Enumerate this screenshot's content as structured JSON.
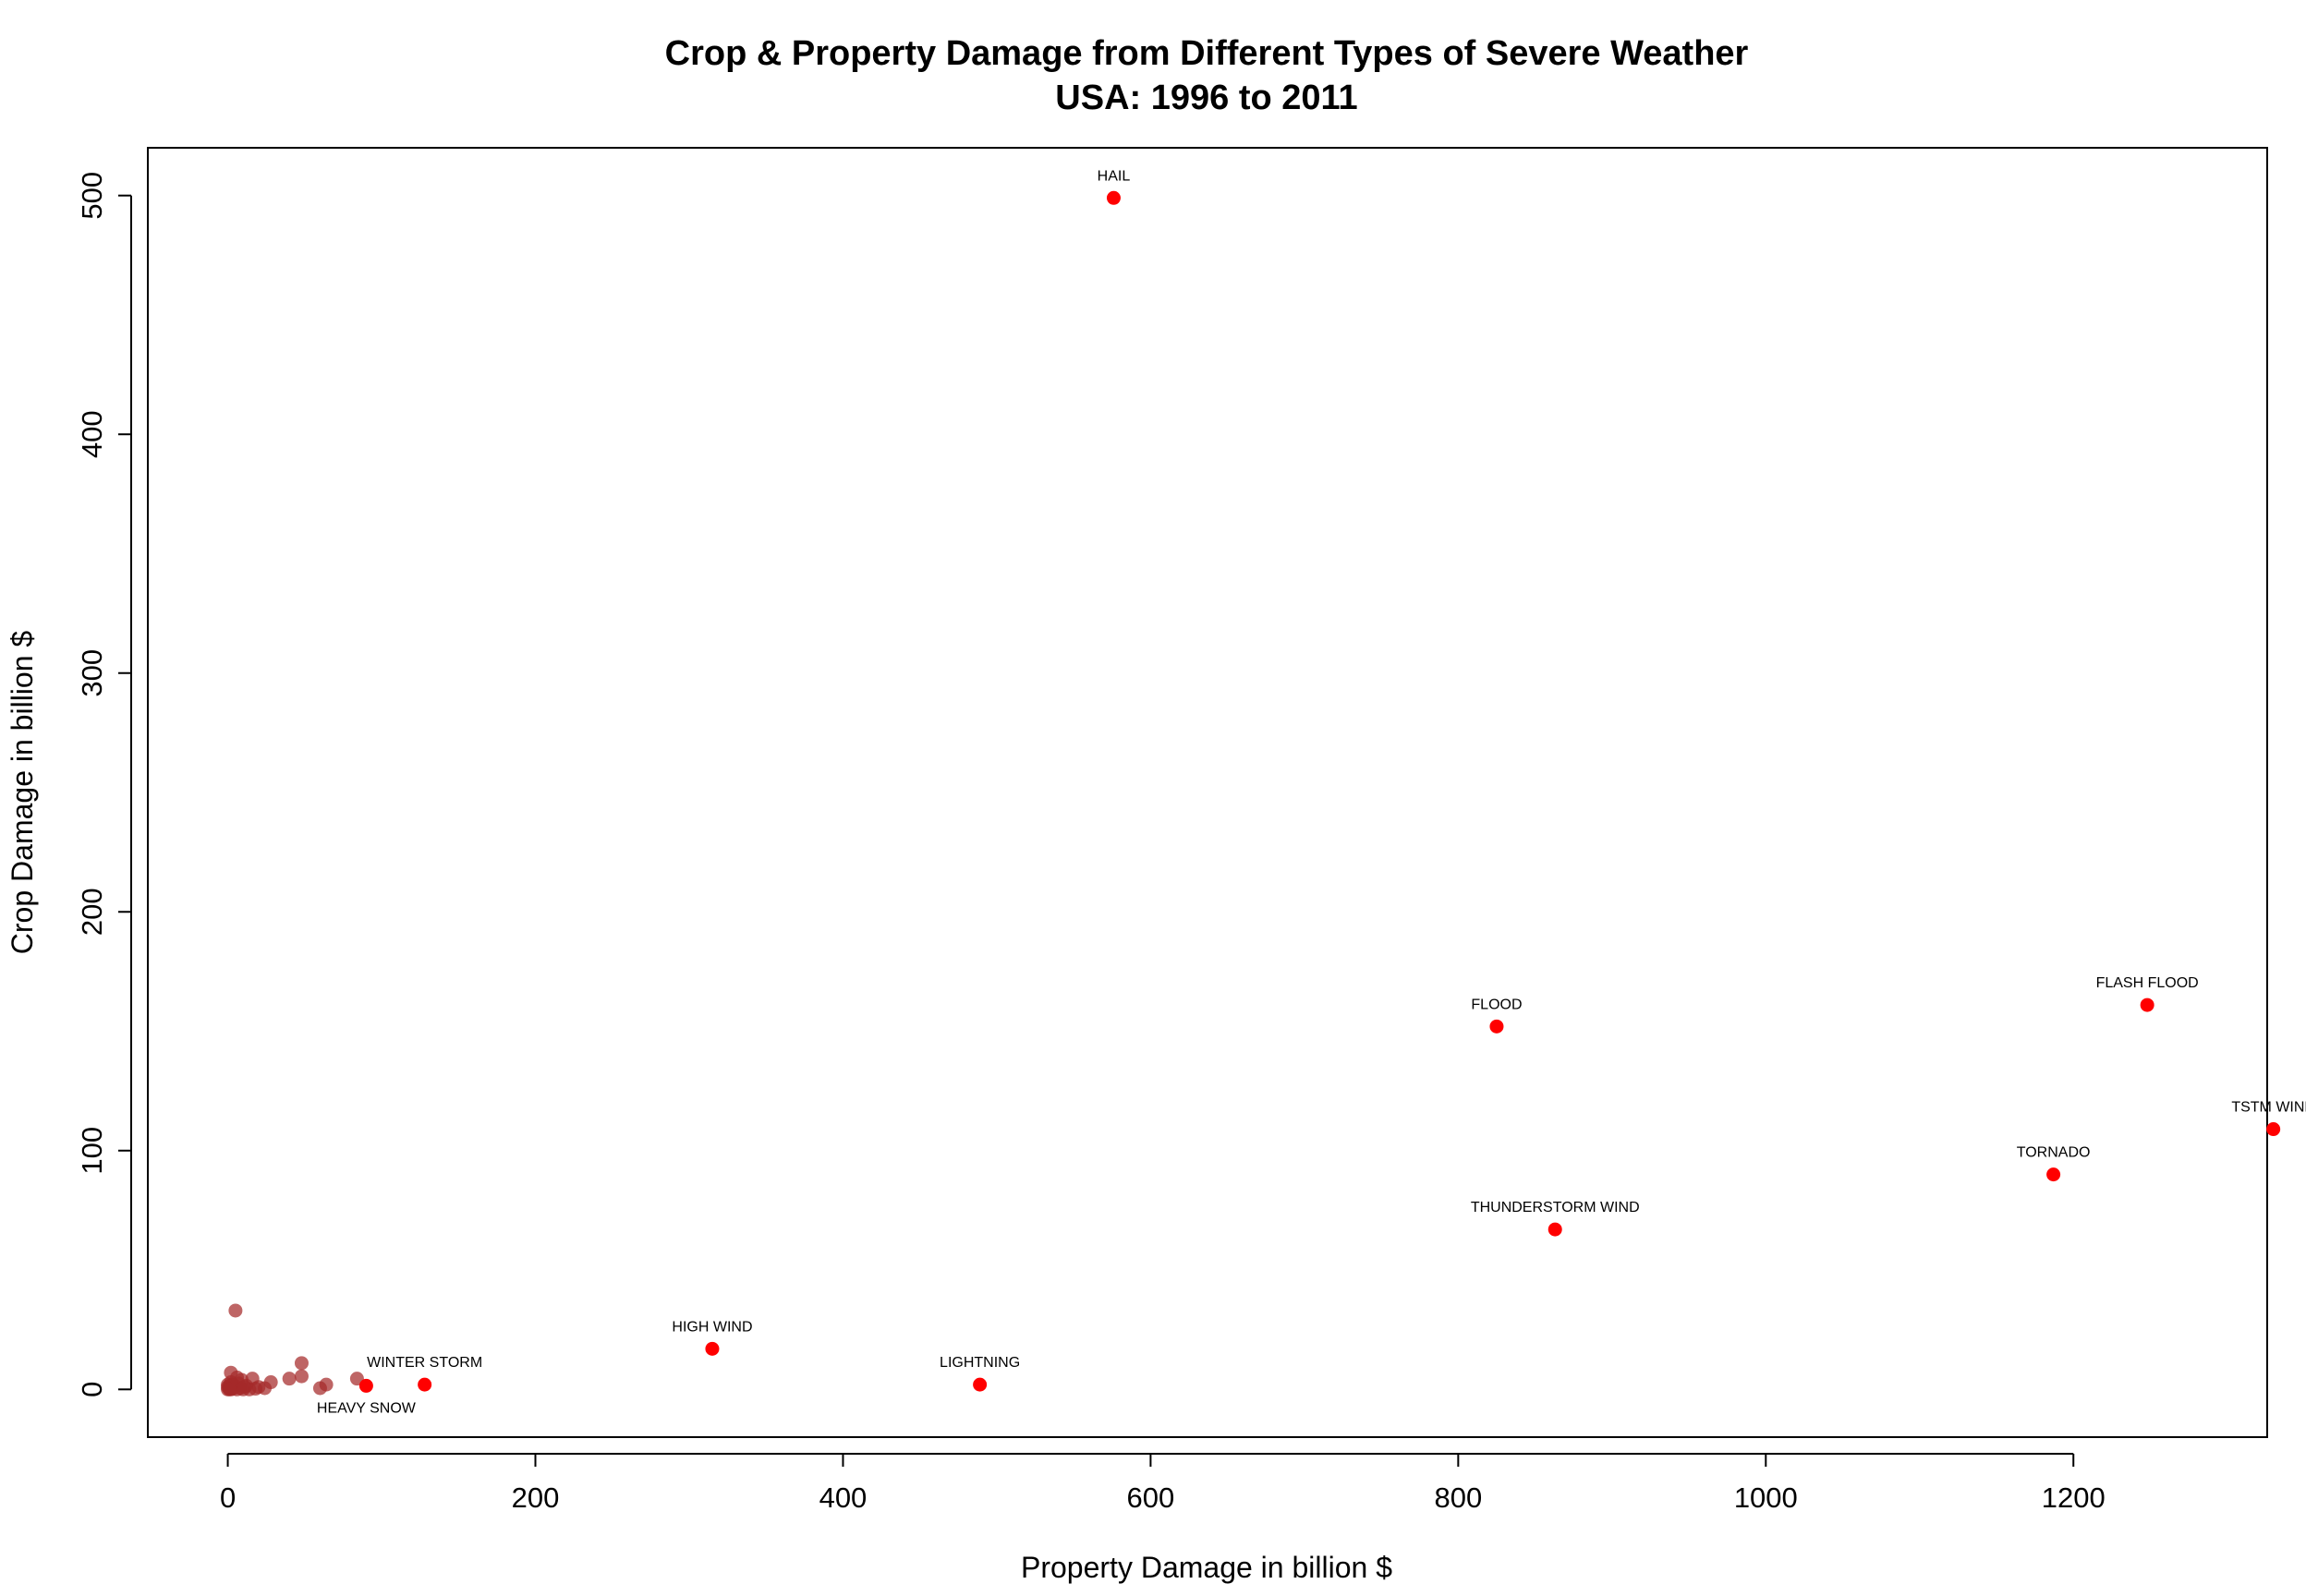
{
  "chart_data": {
    "type": "scatter",
    "title": "Crop & Property Damage from Different Types of Severe Weather",
    "subtitle": "USA: 1996 to 2011",
    "xlabel": "Property Damage in billion $",
    "ylabel": "Crop Damage in billion $",
    "xlim": [
      -52,
      1326
    ],
    "ylim": [
      -20,
      520
    ],
    "xticks": [
      0,
      200,
      400,
      600,
      800,
      1000,
      1200
    ],
    "yticks": [
      0,
      100,
      200,
      300,
      400,
      500
    ],
    "xtick_labels": [
      "0",
      "200",
      "400",
      "600",
      "800",
      "1000",
      "1200"
    ],
    "ytick_labels": [
      "0",
      "100",
      "200",
      "300",
      "400",
      "500"
    ],
    "grid": false,
    "legend": "none",
    "colors": {
      "highlighted": "#ff0000",
      "other": "#a52a2a",
      "axes": "#000000"
    },
    "series": [
      {
        "points": [
          {
            "x": 576,
            "y": 499,
            "label": "HAIL",
            "label_pos": "above"
          },
          {
            "x": 825,
            "y": 152,
            "label": "FLOOD",
            "label_pos": "above"
          },
          {
            "x": 1248,
            "y": 161,
            "label": "FLASH FLOOD",
            "label_pos": "above"
          },
          {
            "x": 1330,
            "y": 109,
            "label": "TSTM WIND",
            "label_pos": "above"
          },
          {
            "x": 1187,
            "y": 90,
            "label": "TORNADO",
            "label_pos": "above"
          },
          {
            "x": 863,
            "y": 67,
            "label": "THUNDERSTORM WIND",
            "label_pos": "above"
          },
          {
            "x": 315,
            "y": 17,
            "label": "HIGH WIND",
            "label_pos": "above"
          },
          {
            "x": 489,
            "y": 2,
            "label": "LIGHTNING",
            "label_pos": "above"
          },
          {
            "x": 128,
            "y": 2,
            "label": "WINTER STORM",
            "label_pos": "above"
          },
          {
            "x": 90,
            "y": 1.5,
            "label": "HEAVY SNOW",
            "label_pos": "below"
          }
        ]
      },
      {
        "points": [
          {
            "x": 5,
            "y": 33
          },
          {
            "x": 48,
            "y": 11
          },
          {
            "x": 2,
            "y": 7
          },
          {
            "x": 84,
            "y": 4.5
          },
          {
            "x": 40,
            "y": 4.5
          },
          {
            "x": 48,
            "y": 5.5
          },
          {
            "x": 16,
            "y": 4.5
          },
          {
            "x": 6,
            "y": 5
          },
          {
            "x": 9,
            "y": 4
          },
          {
            "x": 28,
            "y": 3
          },
          {
            "x": 64,
            "y": 2
          },
          {
            "x": 60,
            "y": 0.5
          },
          {
            "x": 3,
            "y": 2
          },
          {
            "x": 12,
            "y": 1.5
          },
          {
            "x": 20,
            "y": 1
          },
          {
            "x": 24,
            "y": 0.5
          },
          {
            "x": 1,
            "y": 0.5
          },
          {
            "x": 0,
            "y": 0
          },
          {
            "x": 2,
            "y": 0
          },
          {
            "x": 4,
            "y": 1
          },
          {
            "x": 6,
            "y": 0
          },
          {
            "x": 8,
            "y": 0.5
          },
          {
            "x": 10,
            "y": 0
          },
          {
            "x": 14,
            "y": 0
          },
          {
            "x": 0,
            "y": 2
          },
          {
            "x": 1,
            "y": 1.5
          },
          {
            "x": 3,
            "y": 0.2
          },
          {
            "x": 5,
            "y": 1.2
          },
          {
            "x": 7,
            "y": 2.5
          },
          {
            "x": 11,
            "y": 1
          },
          {
            "x": 18,
            "y": 0.3
          },
          {
            "x": 0,
            "y": 1
          },
          {
            "x": 2,
            "y": 3
          },
          {
            "x": 1,
            "y": 0
          }
        ]
      }
    ]
  }
}
